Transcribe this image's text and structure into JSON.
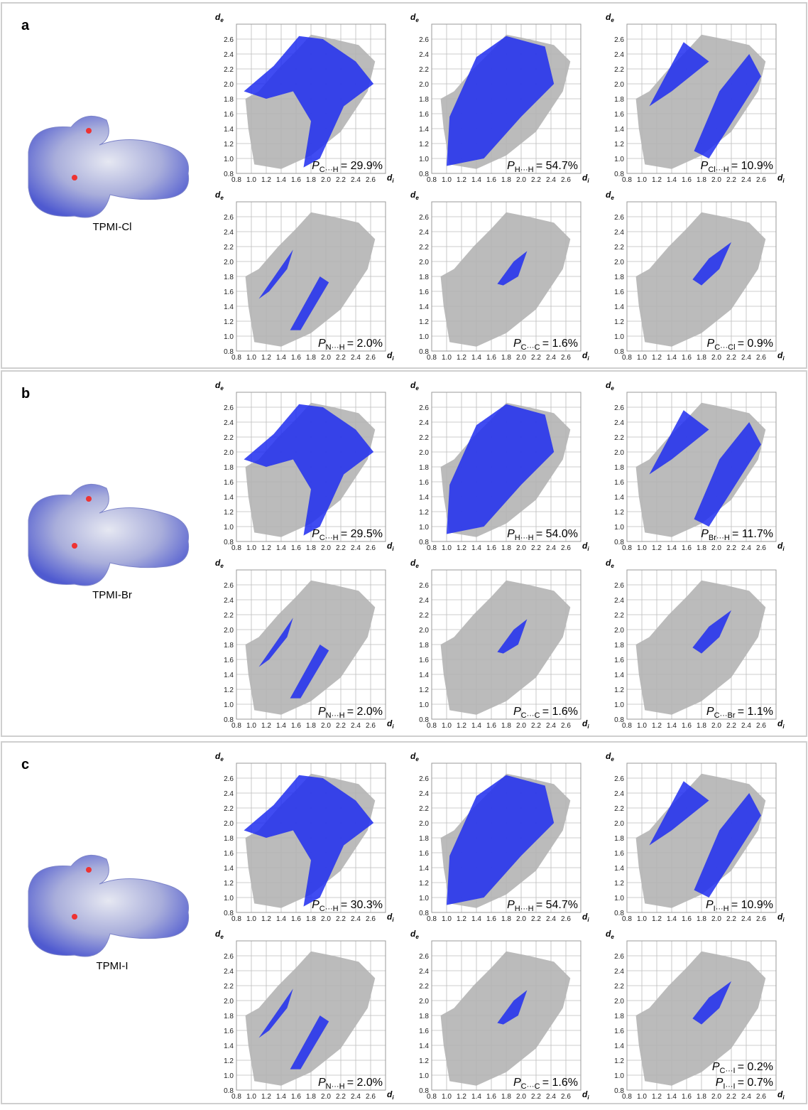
{
  "axes": {
    "xlabel": {
      "symbol": "d",
      "sub": "i"
    },
    "ylabel": {
      "symbol": "d",
      "sub": "e"
    },
    "xlim": [
      0.8,
      2.8
    ],
    "ylim": [
      0.8,
      2.8
    ],
    "xticks": [
      0.8,
      {
        "value": 1,
        "label": "1.0"
      },
      1.2,
      1.4,
      1.6,
      1.8,
      {
        "value": 2,
        "label": "2.0"
      },
      2.2,
      2.4,
      2.6
    ],
    "yticks": [
      0.8,
      {
        "value": 1,
        "label": "1.0"
      },
      1.2,
      1.4,
      1.6,
      1.8,
      {
        "value": 2,
        "label": "2.0"
      },
      2.2,
      2.4,
      2.6
    ]
  },
  "contact_symbol": "P",
  "panels": [
    {
      "label": "a",
      "compound": "TPMI-Cl",
      "plots": [
        {
          "labels": [
            {
              "contact": "C···H",
              "value": "= 29.9%"
            }
          ]
        },
        {
          "labels": [
            {
              "contact": "H···H",
              "value": "= 54.7%"
            }
          ]
        },
        {
          "labels": [
            {
              "contact": "Cl···H",
              "value": "= 10.9%"
            }
          ]
        },
        {
          "labels": [
            {
              "contact": "N···H",
              "value": "= 2.0%"
            }
          ]
        },
        {
          "labels": [
            {
              "contact": "C···C",
              "value": "= 1.6%"
            }
          ]
        },
        {
          "labels": [
            {
              "contact": "C···Cl",
              "value": "= 0.9%"
            }
          ]
        }
      ]
    },
    {
      "label": "b",
      "compound": "TPMI-Br",
      "plots": [
        {
          "labels": [
            {
              "contact": "C···H",
              "value": "= 29.5%"
            }
          ]
        },
        {
          "labels": [
            {
              "contact": "H···H",
              "value": "= 54.0%"
            }
          ]
        },
        {
          "labels": [
            {
              "contact": "Br···H",
              "value": "= 11.7%"
            }
          ]
        },
        {
          "labels": [
            {
              "contact": "N···H",
              "value": "= 2.0%"
            }
          ]
        },
        {
          "labels": [
            {
              "contact": "C···C",
              "value": "= 1.6%"
            }
          ]
        },
        {
          "labels": [
            {
              "contact": "C···Br",
              "value": "= 1.1%"
            }
          ]
        }
      ]
    },
    {
      "label": "c",
      "compound": "TPMI-I",
      "plots": [
        {
          "labels": [
            {
              "contact": "C···H",
              "value": "= 30.3%"
            }
          ]
        },
        {
          "labels": [
            {
              "contact": "H···H",
              "value": "= 54.7%"
            }
          ]
        },
        {
          "labels": [
            {
              "contact": "I···H",
              "value": "= 10.9%"
            }
          ]
        },
        {
          "labels": [
            {
              "contact": "N···H",
              "value": "= 2.0%"
            }
          ]
        },
        {
          "labels": [
            {
              "contact": "C···C",
              "value": "= 1.6%"
            }
          ]
        },
        {
          "labels": [
            {
              "contact": "C···I",
              "value": "= 0.2%"
            },
            {
              "contact": "I···I",
              "value": "= 0.7%"
            }
          ]
        }
      ]
    }
  ]
}
